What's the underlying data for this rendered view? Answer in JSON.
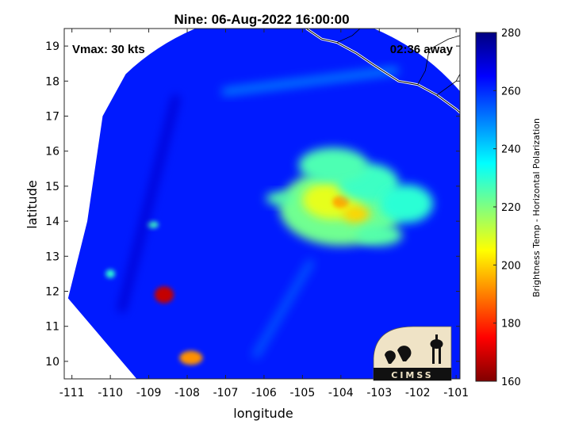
{
  "chart_data": {
    "type": "heatmap",
    "title": "Nine: 06-Aug-2022 16:00:00",
    "xlabel": "longitude",
    "ylabel": "latitude",
    "xlim": [
      -111.2,
      -100.9
    ],
    "ylim": [
      9.5,
      19.5
    ],
    "xticks": [
      -111,
      -110,
      -109,
      -108,
      -107,
      -106,
      -105,
      -104,
      -103,
      -102,
      -101
    ],
    "yticks": [
      10,
      11,
      12,
      13,
      14,
      15,
      16,
      17,
      18,
      19
    ],
    "annotations": {
      "left": "Vmax: 30 kts",
      "right": "02:36 away"
    },
    "colorbar": {
      "label": "Brightness Temp - Horizontal Polarization",
      "range": [
        160,
        280
      ],
      "ticks": [
        160,
        180,
        200,
        220,
        240,
        260,
        280
      ],
      "colormap": "jet"
    },
    "background_value": 262,
    "swath": {
      "center": [
        -105.8,
        14.0
      ],
      "radius_deg": 6.0,
      "west_edge": [
        [
          -109.6,
          18.2
        ],
        [
          -110.2,
          17.0
        ],
        [
          -110.6,
          14.0
        ],
        [
          -111.1,
          11.8
        ]
      ]
    },
    "features": [
      {
        "type": "blob",
        "lon": -104.0,
        "lat": 14.4,
        "rx": 1.6,
        "ry": 1.1,
        "value": 222
      },
      {
        "type": "blob",
        "lon": -104.2,
        "lat": 14.6,
        "rx": 0.8,
        "ry": 0.55,
        "value": 208
      },
      {
        "type": "blob",
        "lon": -104.0,
        "lat": 14.55,
        "rx": 0.22,
        "ry": 0.18,
        "value": 195
      },
      {
        "type": "blob",
        "lon": -103.6,
        "lat": 14.2,
        "rx": 0.35,
        "ry": 0.25,
        "value": 200
      },
      {
        "type": "blob",
        "lon": -105.6,
        "lat": 14.65,
        "rx": 0.35,
        "ry": 0.18,
        "value": 225
      },
      {
        "type": "blob",
        "lon": -103.3,
        "lat": 15.1,
        "rx": 0.8,
        "ry": 0.55,
        "value": 228
      },
      {
        "type": "blob",
        "lon": -104.2,
        "lat": 15.6,
        "rx": 0.9,
        "ry": 0.5,
        "value": 226
      },
      {
        "type": "blob",
        "lon": -102.3,
        "lat": 14.5,
        "rx": 0.7,
        "ry": 0.55,
        "value": 230
      },
      {
        "type": "blob",
        "lon": -103.0,
        "lat": 13.6,
        "rx": 0.6,
        "ry": 0.3,
        "value": 225
      },
      {
        "type": "blob",
        "lon": -108.6,
        "lat": 11.9,
        "rx": 0.25,
        "ry": 0.24,
        "value": 168
      },
      {
        "type": "blob",
        "lon": -107.9,
        "lat": 10.1,
        "rx": 0.3,
        "ry": 0.2,
        "value": 192
      },
      {
        "type": "blob",
        "lon": -108.9,
        "lat": 13.9,
        "rx": 0.15,
        "ry": 0.1,
        "value": 228
      },
      {
        "type": "blob",
        "lon": -110.0,
        "lat": 12.5,
        "rx": 0.12,
        "ry": 0.12,
        "value": 230
      },
      {
        "type": "band",
        "from": [
          -107.0,
          17.7
        ],
        "to": [
          -102.6,
          18.3
        ],
        "value": 250
      },
      {
        "type": "band",
        "from": [
          -109.7,
          11.5
        ],
        "to": [
          -108.3,
          17.5
        ],
        "value": 270
      },
      {
        "type": "band",
        "from": [
          -106.2,
          10.2
        ],
        "to": [
          -104.8,
          12.8
        ],
        "value": 255
      }
    ],
    "coastline": [
      [
        -104.9,
        19.5
      ],
      [
        -104.5,
        19.2
      ],
      [
        -104.1,
        19.1
      ],
      [
        -103.6,
        18.8
      ],
      [
        -103.2,
        18.5
      ],
      [
        -102.5,
        18.0
      ],
      [
        -102.0,
        17.9
      ],
      [
        -101.5,
        17.6
      ],
      [
        -101.0,
        17.2
      ],
      [
        -100.9,
        17.1
      ]
    ],
    "borders": [
      [
        [
          -102.0,
          17.9
        ],
        [
          -101.8,
          18.3
        ],
        [
          -101.7,
          18.9
        ],
        [
          -101.2,
          19.2
        ],
        [
          -100.9,
          19.3
        ]
      ],
      [
        [
          -101.5,
          17.6
        ],
        [
          -101.0,
          18.0
        ],
        [
          -100.9,
          18.2
        ]
      ],
      [
        [
          -104.1,
          19.1
        ],
        [
          -103.7,
          19.3
        ],
        [
          -103.5,
          19.5
        ]
      ]
    ],
    "logo_text": "CIMSS"
  }
}
